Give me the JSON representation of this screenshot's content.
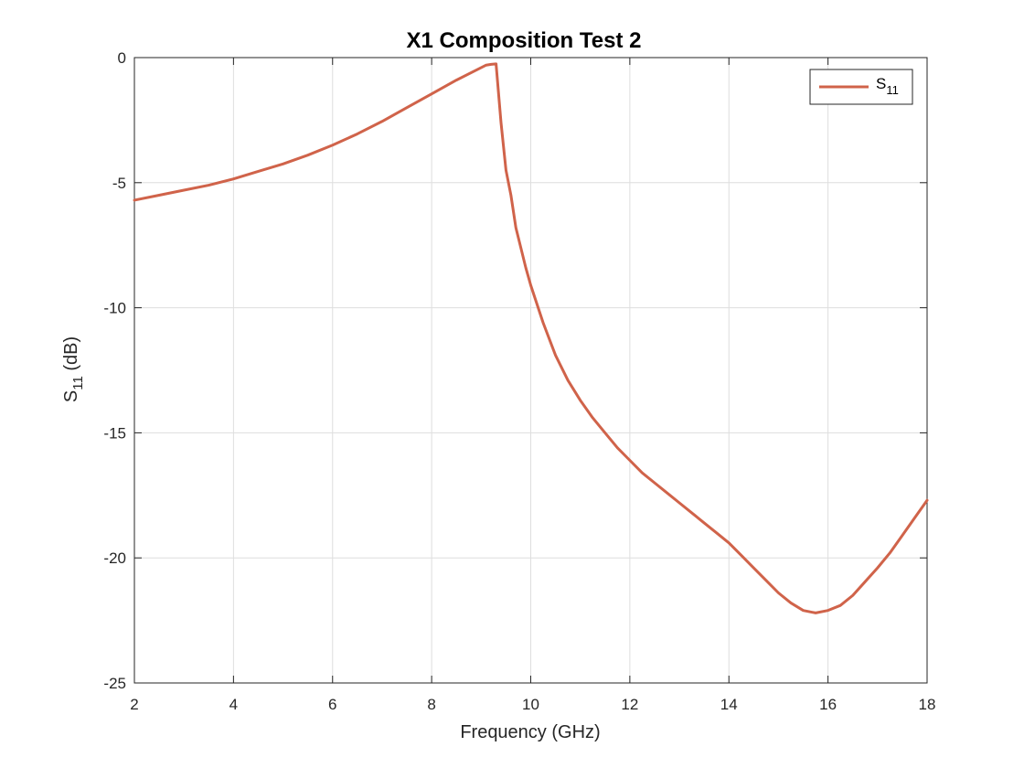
{
  "chart_data": {
    "type": "line",
    "title": "X1 Composition Test 2",
    "xlabel": "Frequency (GHz)",
    "ylabel": {
      "main": "S",
      "sub": "11",
      "unit": " (dB)"
    },
    "xlim": [
      2,
      18
    ],
    "ylim": [
      -25,
      0
    ],
    "xticks": [
      2,
      4,
      6,
      8,
      10,
      12,
      14,
      16,
      18
    ],
    "yticks": [
      0,
      -5,
      -10,
      -15,
      -20,
      -25
    ],
    "xtick_labels": [
      "2",
      "4",
      "6",
      "8",
      "10",
      "12",
      "14",
      "16",
      "18"
    ],
    "ytick_labels": [
      "0",
      "-5",
      "-10",
      "-15",
      "-20",
      "-25"
    ],
    "grid": true,
    "legend_position": "top-right",
    "series": [
      {
        "name": {
          "main": "S",
          "sub": "11"
        },
        "color": "#d0634a",
        "x": [
          2.0,
          2.5,
          3.0,
          3.5,
          4.0,
          4.5,
          5.0,
          5.5,
          6.0,
          6.5,
          7.0,
          7.5,
          8.0,
          8.5,
          9.0,
          9.1,
          9.2,
          9.3,
          9.4,
          9.5,
          9.6,
          9.7,
          9.8,
          9.9,
          10.0,
          10.25,
          10.5,
          10.75,
          11.0,
          11.25,
          11.5,
          11.75,
          12.0,
          12.25,
          12.5,
          12.75,
          13.0,
          13.25,
          13.5,
          13.75,
          14.0,
          14.25,
          14.5,
          14.75,
          15.0,
          15.25,
          15.5,
          15.75,
          16.0,
          16.25,
          16.5,
          16.75,
          17.0,
          17.25,
          17.5,
          17.75,
          18.0
        ],
        "y": [
          -5.7,
          -5.5,
          -5.3,
          -5.1,
          -4.85,
          -4.55,
          -4.25,
          -3.9,
          -3.5,
          -3.05,
          -2.55,
          -2.0,
          -1.45,
          -0.9,
          -0.4,
          -0.3,
          -0.27,
          -0.25,
          -2.6,
          -4.5,
          -5.5,
          -6.8,
          -7.6,
          -8.4,
          -9.1,
          -10.6,
          -11.9,
          -12.9,
          -13.7,
          -14.4,
          -15.0,
          -15.6,
          -16.1,
          -16.6,
          -17.0,
          -17.4,
          -17.8,
          -18.2,
          -18.6,
          -19.0,
          -19.4,
          -19.9,
          -20.4,
          -20.9,
          -21.4,
          -21.8,
          -22.1,
          -22.2,
          -22.1,
          -21.9,
          -21.5,
          -20.95,
          -20.4,
          -19.8,
          -19.1,
          -18.4,
          -17.7
        ]
      }
    ]
  }
}
